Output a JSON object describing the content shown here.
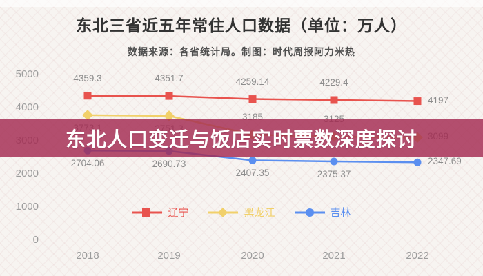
{
  "header": {
    "title": "东北三省近五年常住人口数据（单位：万人）",
    "subtitle": "数据来源：各省统计局。制图：时代周报阿力米热"
  },
  "banner": {
    "text": "东北人口变迁与饭店实时票数深度探讨",
    "color": "#a32a50",
    "text_color": "#ffffff"
  },
  "chart_data": {
    "type": "line",
    "title": "东北三省近五年常住人口数据（单位：万人）",
    "categories": [
      "2018",
      "2019",
      "2020",
      "2021",
      "2022"
    ],
    "series": [
      {
        "key": "liaoning",
        "name": "辽宁",
        "color": "#e8534e",
        "marker": "square",
        "values": [
          4359.3,
          4351.7,
          4259.14,
          4229.4,
          4197
        ]
      },
      {
        "key": "heilongjiang",
        "name": "黑龙江",
        "color": "#f1d06a",
        "marker": "diamond",
        "values": [
          3773.1,
          3751.3,
          3185,
          3125,
          3099
        ]
      },
      {
        "key": "jilin",
        "name": "吉林",
        "color": "#5b8ff0",
        "marker": "circle",
        "values": [
          2704.06,
          2690.73,
          2407.35,
          2375.37,
          2347.69
        ]
      }
    ],
    "y_ticks": [
      "5000",
      "4000",
      "3000",
      "2000",
      "1000",
      "0"
    ],
    "ylim": [
      0,
      5000
    ],
    "xlabel": "",
    "ylabel": "",
    "grid": false,
    "legend_position": "bottom"
  }
}
